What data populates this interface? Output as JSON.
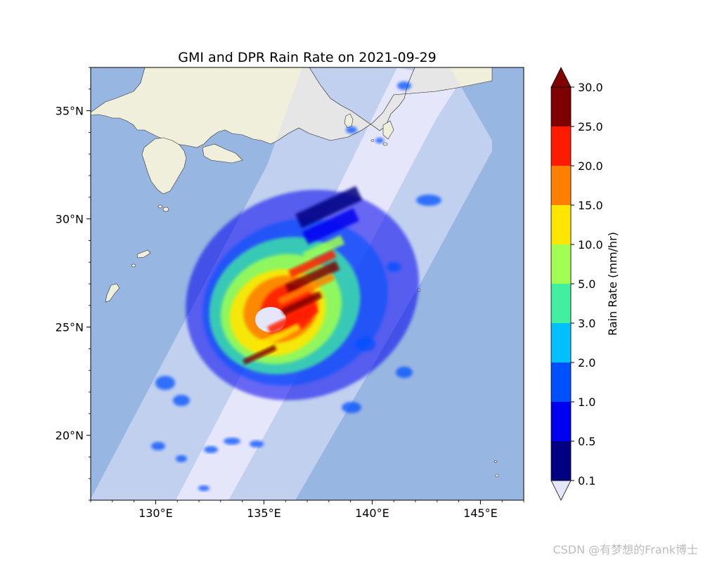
{
  "title": "GMI and DPR Rain Rate on 2021-09-29",
  "map": {
    "lon_range": [
      127,
      147
    ],
    "lat_range": [
      17,
      37
    ],
    "xticks": [
      130,
      135,
      140,
      145
    ],
    "yticks": [
      20,
      25,
      30,
      35
    ],
    "xtick_labels": [
      "130°E",
      "135°E",
      "140°E",
      "145°E"
    ],
    "ytick_labels": [
      "20°N",
      "25°N",
      "30°N",
      "35°N"
    ],
    "colors": {
      "ocean": "#97b6e1",
      "land": "#efefdb",
      "gmi_swath": "#c0d0ee",
      "dpr_swath": "#e6e6fa"
    }
  },
  "colorbar": {
    "label": "Rain Rate (mm/hr)",
    "levels": [
      "0.1",
      "0.5",
      "1.0",
      "2.0",
      "3.0",
      "5.0",
      "10.0",
      "15.0",
      "20.0",
      "25.0",
      "30.0"
    ],
    "colors": [
      "#000080",
      "#0000f0",
      "#0050ff",
      "#00c0ff",
      "#40f0a0",
      "#a0ff50",
      "#ffe600",
      "#ff7f00",
      "#ff1a00",
      "#800000"
    ],
    "under_color": "#e6e6fa",
    "over_color": "#800000",
    "extend": "both"
  },
  "watermark": "CSDN @有梦想的Frank博士"
}
